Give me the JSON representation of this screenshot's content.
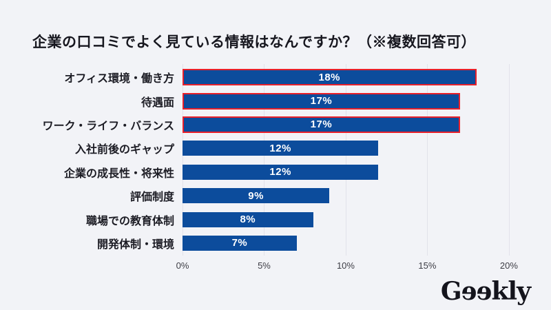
{
  "page": {
    "background": "#f2f3f7"
  },
  "title": "企業の口コミでよく見ている情報はなんですか？（※複数回答可）",
  "chart_data": {
    "type": "bar",
    "orientation": "horizontal",
    "title": "企業の口コミでよく見ている情報はなんですか？（※複数回答可）",
    "categories": [
      "オフィス環境・働き方",
      "待遇面",
      "ワーク・ライフ・バランス",
      "入社前後のギャップ",
      "企業の成長性・将来性",
      "評価制度",
      "職場での教育体制",
      "開発体制・環境"
    ],
    "values": [
      18,
      17,
      17,
      12,
      12,
      9,
      8,
      7
    ],
    "value_labels": [
      "18%",
      "17%",
      "17%",
      "12%",
      "12%",
      "9%",
      "8%",
      "7%"
    ],
    "highlighted": [
      true,
      true,
      true,
      false,
      false,
      false,
      false,
      false
    ],
    "x_tick_values": [
      0,
      5,
      10,
      15,
      20
    ],
    "x_tick_labels": [
      "0%",
      "5%",
      "10%",
      "15%",
      "20%"
    ],
    "xlim": [
      0,
      21.1
    ],
    "xlabel": "",
    "ylabel": "",
    "grid": true,
    "legend": false,
    "bar_color": "#0c4c9c",
    "highlight_border_color": "#e8202a",
    "value_text_color": "#ffffff"
  },
  "logo": {
    "text": "Gɘɘkly",
    "brand": "Geekly"
  }
}
